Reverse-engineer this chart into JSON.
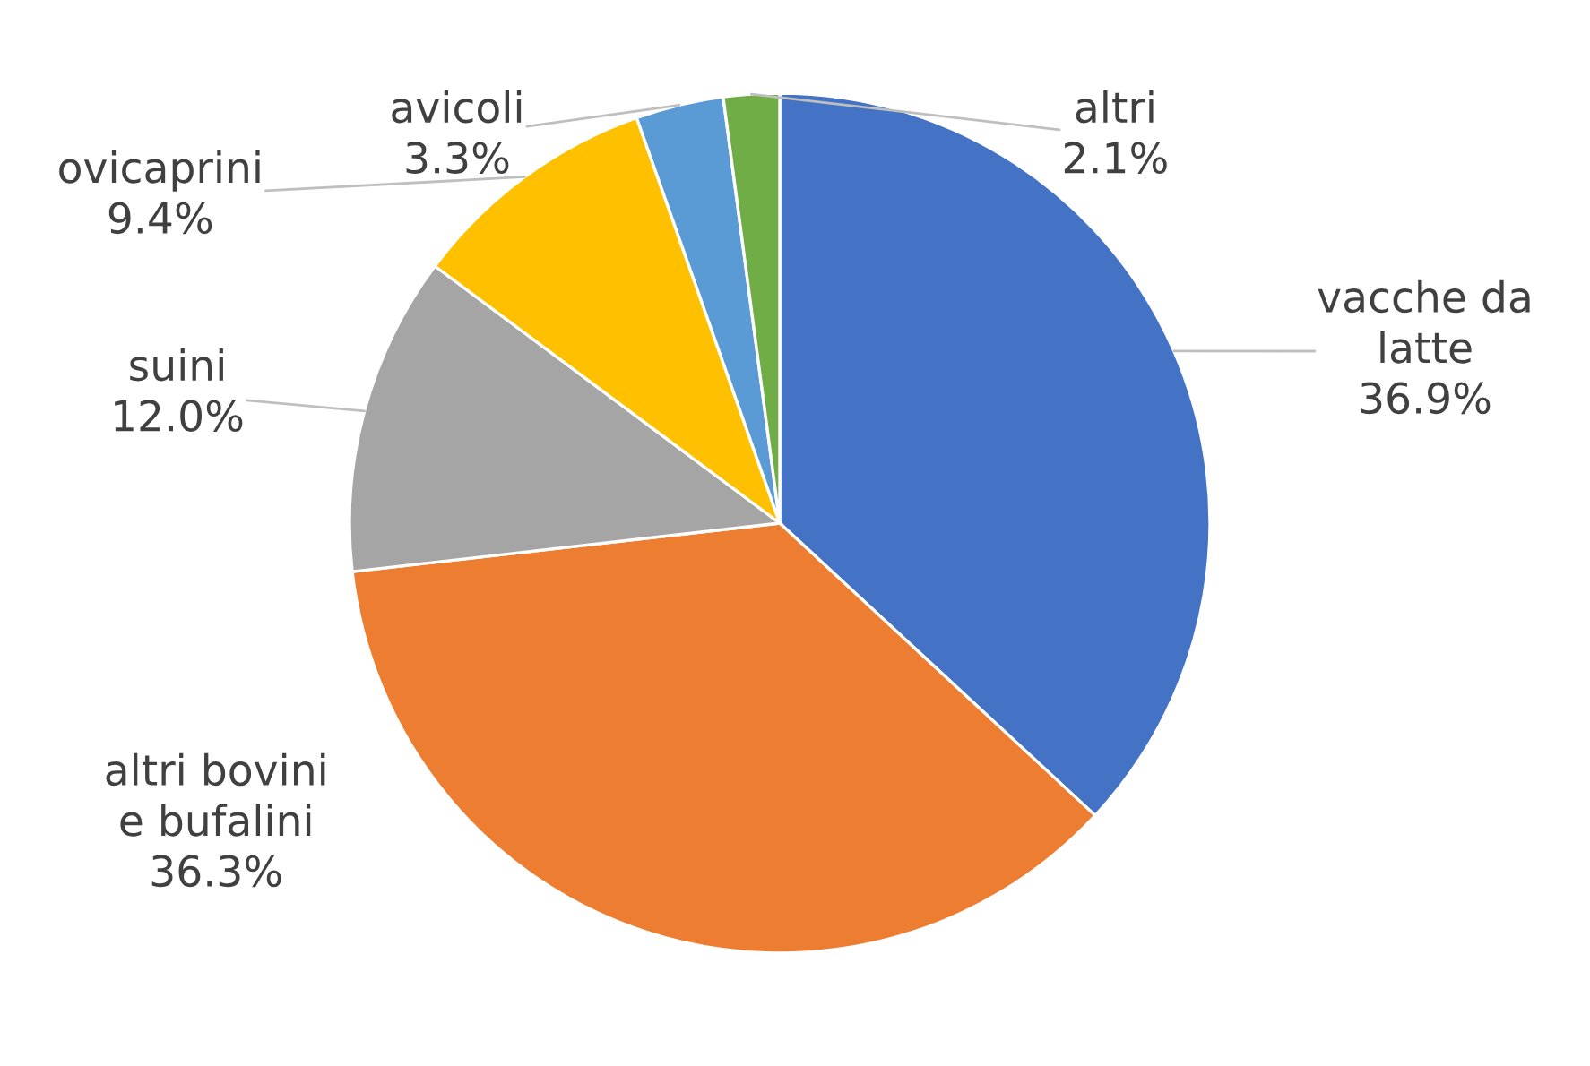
{
  "chart_data": {
    "type": "pie",
    "categories": [
      "vacche da\nlatte",
      "altri bovini\ne bufalini",
      "suini",
      "ovicaprini",
      "avicoli",
      "altri"
    ],
    "values": [
      36.9,
      36.3,
      12.0,
      9.4,
      3.3,
      2.1
    ],
    "colors": [
      "#4472c4",
      "#ed7d31",
      "#a5a5a5",
      "#ffc000",
      "#5b9bd5",
      "#70ad47"
    ],
    "value_labels": [
      "36.9%",
      "36.3%",
      "12.0%",
      "9.4%",
      "3.3%",
      "2.1%"
    ],
    "legend": false
  }
}
